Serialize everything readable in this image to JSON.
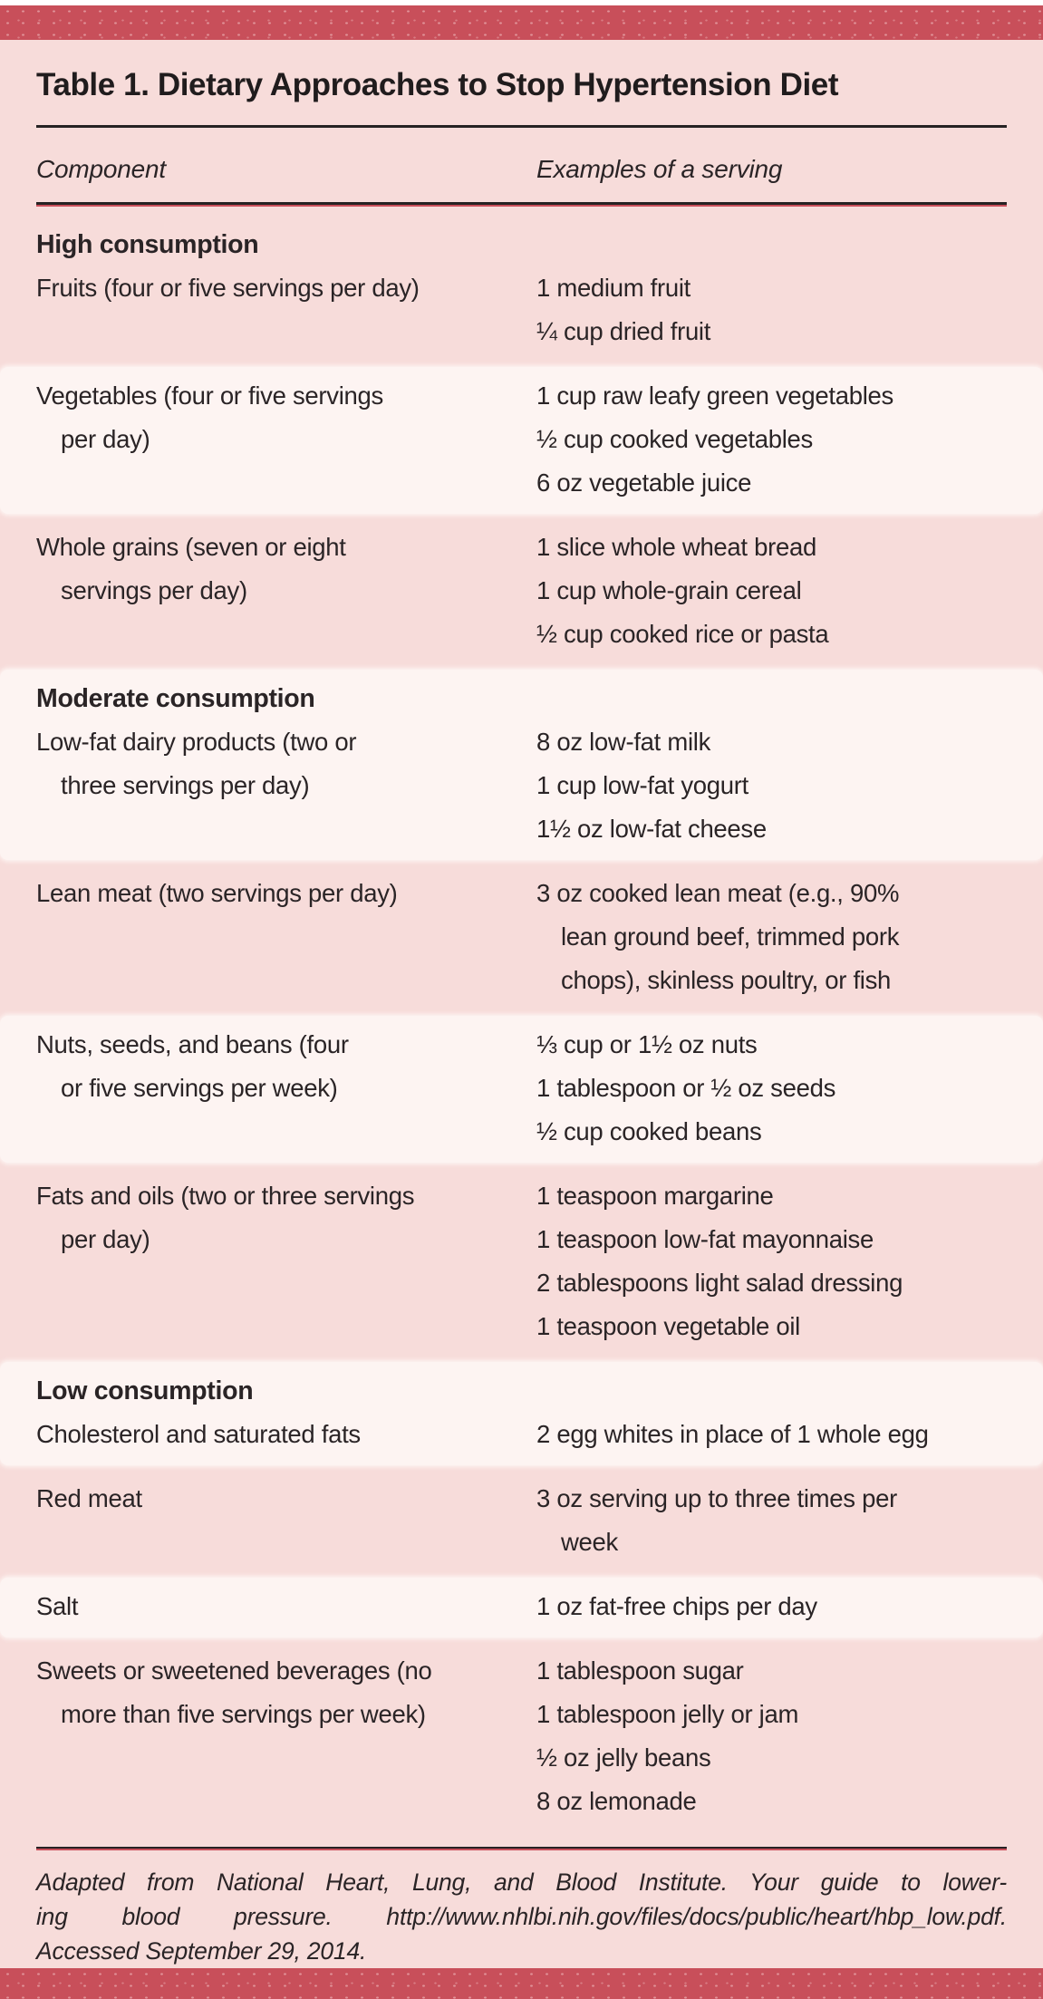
{
  "table": {
    "title": "Table 1. Dietary Approaches to Stop Hypertension Diet",
    "columns": [
      "Component",
      "Examples of a serving"
    ],
    "bands": [
      {
        "shade": "pink",
        "heading": "High consumption",
        "row": {
          "component": [
            "Fruits (four or five servings per day)"
          ],
          "examples": [
            [
              "1 medium fruit"
            ],
            [
              "¼ cup dried fruit"
            ]
          ]
        }
      },
      {
        "shade": "white",
        "row": {
          "component": [
            "Vegetables (four or five servings",
            "per day)"
          ],
          "examples": [
            [
              "1 cup raw leafy green vegetables"
            ],
            [
              "½ cup cooked vegetables"
            ],
            [
              "6 oz vegetable juice"
            ]
          ]
        }
      },
      {
        "shade": "pink",
        "row": {
          "component": [
            "Whole grains (seven or eight",
            "servings per day)"
          ],
          "examples": [
            [
              "1 slice whole wheat bread"
            ],
            [
              "1 cup whole-grain cereal"
            ],
            [
              "½ cup cooked rice or pasta"
            ]
          ]
        }
      },
      {
        "shade": "white",
        "heading": "Moderate consumption",
        "row": {
          "component": [
            "Low-fat dairy products (two or",
            "three servings per day)"
          ],
          "examples": [
            [
              "8 oz low-fat milk"
            ],
            [
              "1 cup low-fat yogurt"
            ],
            [
              "1½ oz low-fat cheese"
            ]
          ]
        }
      },
      {
        "shade": "pink",
        "row": {
          "component": [
            "Lean meat (two servings per day)"
          ],
          "examples": [
            [
              "3 oz cooked lean meat (e.g., 90%",
              "lean ground beef, trimmed pork",
              "chops), skinless poultry, or fish"
            ]
          ]
        }
      },
      {
        "shade": "white",
        "row": {
          "component": [
            "Nuts, seeds, and beans (four",
            "or five servings per week)"
          ],
          "examples": [
            [
              "⅓ cup or 1½ oz nuts"
            ],
            [
              "1 tablespoon or ½ oz seeds"
            ],
            [
              "½ cup cooked beans"
            ]
          ]
        }
      },
      {
        "shade": "pink",
        "row": {
          "component": [
            "Fats and oils (two or three servings",
            "per day)"
          ],
          "examples": [
            [
              "1 teaspoon margarine"
            ],
            [
              "1 teaspoon low-fat mayonnaise"
            ],
            [
              "2 tablespoons light salad dressing"
            ],
            [
              "1 teaspoon vegetable oil"
            ]
          ]
        }
      },
      {
        "shade": "white",
        "heading": "Low consumption",
        "row": {
          "component": [
            "Cholesterol and saturated fats"
          ],
          "examples": [
            [
              "2 egg whites in place of 1 whole egg"
            ]
          ]
        }
      },
      {
        "shade": "pink",
        "row": {
          "component": [
            "Red meat"
          ],
          "examples": [
            [
              "3 oz serving up to three times per",
              "week"
            ]
          ]
        }
      },
      {
        "shade": "white",
        "row": {
          "component": [
            "Salt"
          ],
          "examples": [
            [
              "1 oz fat-free chips per day"
            ]
          ]
        }
      },
      {
        "shade": "pink",
        "row": {
          "component": [
            "Sweets or sweetened beverages (no",
            "more than five servings per week)"
          ],
          "examples": [
            [
              "1 tablespoon sugar"
            ],
            [
              "1 tablespoon jelly or jam"
            ],
            [
              "½ oz jelly beans"
            ],
            [
              "8 oz lemonade"
            ]
          ]
        }
      }
    ]
  },
  "footnote": {
    "full_text": "Adapted from National Heart, Lung, and Blood Institute. Your guide to lowering blood pressure. http://www.nhlbi.nih.gov/files/docs/public/heart/hbp_low.pdf. Accessed September 29, 2014.",
    "lines": [
      "Adapted from National Heart, Lung, and Blood Institute. Your guide to lower-",
      "ing blood pressure. http://www.nhlbi.nih.gov/files/docs/public/heart/hbp_low.pdf.",
      "Accessed September 29, 2014."
    ]
  },
  "colors": {
    "accent_red": "#c84f5a",
    "base_pink": "#f7dcda",
    "band_white": "#fdf4f2",
    "text_ink": "#2a2426",
    "rule_black": "#262223"
  }
}
